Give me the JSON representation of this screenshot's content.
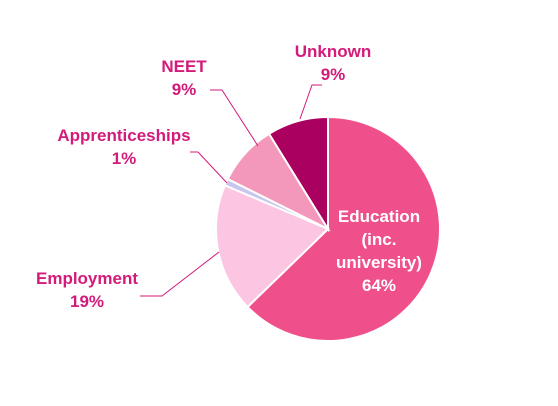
{
  "chart_data": {
    "type": "pie",
    "title": "",
    "slices": [
      {
        "name": "Education (inc. university)",
        "label_lines": [
          "Education",
          "(inc.",
          "university)"
        ],
        "value": 64,
        "value_label": "64%",
        "color": "#ef508b"
      },
      {
        "name": "Employment",
        "label_lines": [
          "Employment"
        ],
        "value": 19,
        "value_label": "19%",
        "color": "#fcc6e3"
      },
      {
        "name": "Apprenticeships",
        "label_lines": [
          "Apprenticeships"
        ],
        "value": 1,
        "value_label": "1%",
        "color": "#c8c6ec"
      },
      {
        "name": "NEET",
        "label_lines": [
          "NEET"
        ],
        "value": 9,
        "value_label": "9%",
        "color": "#f498bb"
      },
      {
        "name": "Unknown",
        "label_lines": [
          "Unknown"
        ],
        "value": 9,
        "value_label": "9%",
        "color": "#aa0060"
      }
    ],
    "label_color": "#d41a7a",
    "inside_label_color": "#ffffff",
    "leader_line_color": "#d41a7a"
  }
}
